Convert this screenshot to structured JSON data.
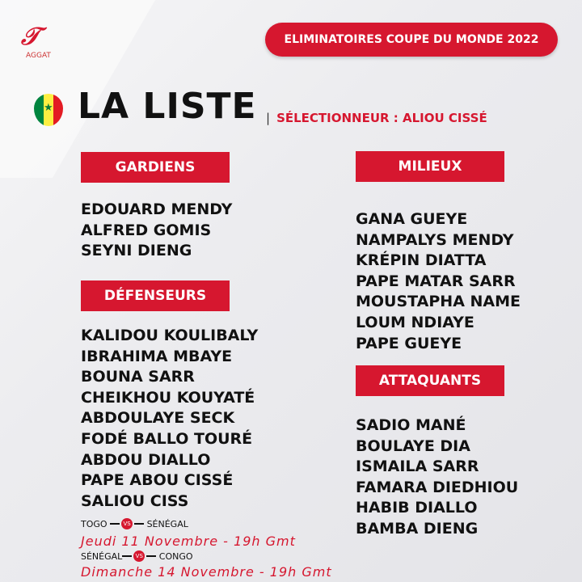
{
  "logo": {
    "text": "AGGAT"
  },
  "banner": "ELIMINATOIRES COUPE DU MONDE 2022",
  "title": "LA LISTE",
  "coach": "SÉLECTIONNEUR : ALIOU CISSÉ",
  "flag_colors": [
    "#00853f",
    "#fdef42",
    "#e31b23"
  ],
  "sections": {
    "gardiens": {
      "label": "GARDIENS",
      "players": [
        "EDOUARD MENDY",
        "ALFRED GOMIS",
        "SEYNI DIENG"
      ]
    },
    "defenseurs": {
      "label": "DÉFENSEURS",
      "players": [
        "KALIDOU KOULIBALY",
        "IBRAHIMA MBAYE",
        "BOUNA SARR",
        "CHEIKHOU KOUYATÉ",
        "ABDOULAYE SECK",
        "FODÉ BALLO TOURÉ",
        "ABDOU DIALLO",
        "PAPE ABOU CISSÉ",
        "SALIOU CISS"
      ]
    },
    "milieux": {
      "label": "MILIEUX",
      "players": [
        "GANA GUEYE",
        "NAMPALYS MENDY",
        "KRÉPIN DIATTA",
        "PAPE MATAR SARR",
        "MOUSTAPHA NAME",
        "LOUM NDIAYE",
        "PAPE GUEYE"
      ]
    },
    "attaquants": {
      "label": "ATTAQUANTS",
      "players": [
        "SADIO MANÉ",
        "BOULAYE DIA",
        "ISMAILA SARR",
        "FAMARA DIEDHIOU",
        "HABIB DIALLO",
        "BAMBA DIENG"
      ]
    }
  },
  "matches": [
    {
      "home": "TOGO",
      "away": "SÉNÉGAL",
      "vs": "VS",
      "date": "Jeudi 11 Novembre - 19h Gmt"
    },
    {
      "home": "SÉNÉGAL",
      "away": "CONGO",
      "vs": "VS",
      "date": "Dimanche 14 Novembre - 19h Gmt"
    }
  ],
  "accent": "#d6172f"
}
